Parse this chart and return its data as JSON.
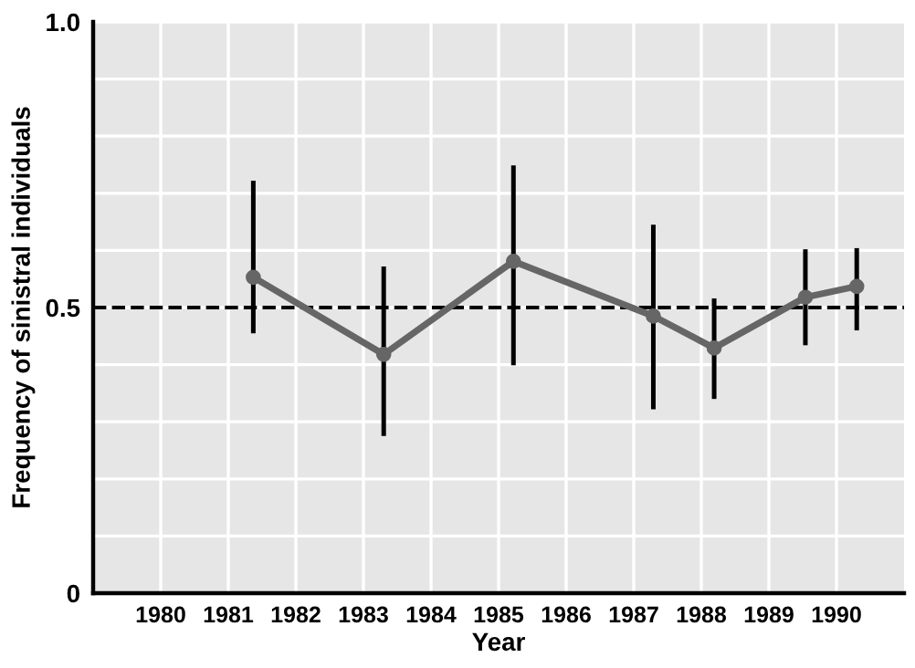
{
  "chart_data": {
    "type": "line",
    "xlabel": "Year",
    "ylabel": "Frequency of sinistral individuals",
    "x": [
      1981.37,
      1983.3,
      1985.22,
      1987.29,
      1988.19,
      1989.54,
      1990.3
    ],
    "series": [
      {
        "color": "#666666",
        "values": [
          0.553,
          0.418,
          0.581,
          0.485,
          0.429,
          0.518,
          0.537
        ],
        "errors": [
          [
            0.455,
            0.722
          ],
          [
            0.275,
            0.572
          ],
          [
            0.399,
            0.749
          ],
          [
            0.322,
            0.645
          ],
          [
            0.34,
            0.516
          ],
          [
            0.434,
            0.602
          ],
          [
            0.46,
            0.604
          ]
        ]
      }
    ],
    "xlim": [
      1979,
      1991
    ],
    "xticks": [
      1980,
      1981,
      1982,
      1983,
      1984,
      1985,
      1986,
      1987,
      1988,
      1989,
      1990
    ],
    "ylim": [
      0,
      1
    ],
    "yticks": [
      0,
      {
        "value": 0.1,
        "label": null
      },
      {
        "value": 0.2,
        "label": null
      },
      {
        "value": 0.3,
        "label": null
      },
      {
        "value": 0.4,
        "label": null
      },
      0.5,
      {
        "value": 0.6,
        "label": null
      },
      {
        "value": 0.7,
        "label": null
      },
      {
        "value": 0.8,
        "label": null
      },
      {
        "value": 0.9,
        "label": null
      },
      {
        "value": 1,
        "label": "1.0"
      }
    ],
    "ref_lines": [
      {
        "axis": "y",
        "value": 0.5,
        "color": "#000000",
        "line_style": "dashed"
      }
    ],
    "grid": true,
    "marker": "circle",
    "line_style": "solid"
  }
}
